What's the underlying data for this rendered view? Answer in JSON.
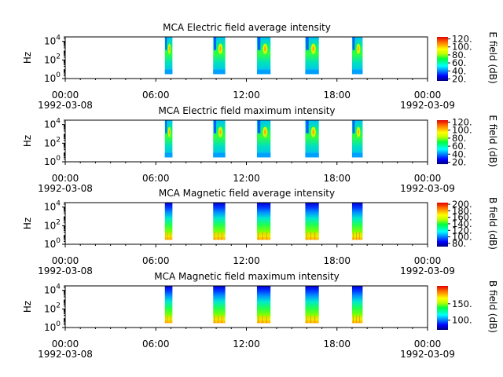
{
  "chart_data": [
    {
      "type": "heatmap",
      "title": "MCA  Electric field average intensity",
      "ylabel": "Hz",
      "yscale": "log",
      "ylim": [
        1,
        30000
      ],
      "y_ticks": [
        {
          "exp": "0",
          "value": 1
        },
        {
          "exp": "2",
          "value": 100
        },
        {
          "exp": "4",
          "value": 10000
        }
      ],
      "xlim": [
        "1992-03-08 00:00",
        "1992-03-09 00:00"
      ],
      "x_ticks": [
        {
          "time": "00:00",
          "date": "1992-03-08"
        },
        {
          "time": "06:00",
          "date": ""
        },
        {
          "time": "12:00",
          "date": ""
        },
        {
          "time": "18:00",
          "date": ""
        },
        {
          "time": "00:00",
          "date": "1992-03-09"
        }
      ],
      "colorbar": {
        "label": "E field (dB)",
        "range": [
          15,
          125
        ],
        "ticks": [
          "20.",
          "40.",
          "60.",
          "80.",
          "100.",
          "120."
        ],
        "tick_values": [
          20,
          40,
          60,
          80,
          100,
          120
        ]
      },
      "field": "E",
      "data_hours": [
        [
          6.6,
          7.1
        ],
        [
          9.8,
          10.6
        ],
        [
          12.7,
          13.6
        ],
        [
          15.9,
          16.8
        ],
        [
          19.0,
          19.7
        ]
      ],
      "freq_range": [
        3,
        30000
      ]
    },
    {
      "type": "heatmap",
      "title": "MCA  Electric field maximum intensity",
      "ylabel": "Hz",
      "yscale": "log",
      "ylim": [
        1,
        30000
      ],
      "y_ticks": [
        {
          "exp": "0",
          "value": 1
        },
        {
          "exp": "2",
          "value": 100
        },
        {
          "exp": "4",
          "value": 10000
        }
      ],
      "xlim": [
        "1992-03-08 00:00",
        "1992-03-09 00:00"
      ],
      "x_ticks": [
        {
          "time": "00:00",
          "date": "1992-03-08"
        },
        {
          "time": "06:00",
          "date": ""
        },
        {
          "time": "12:00",
          "date": ""
        },
        {
          "time": "18:00",
          "date": ""
        },
        {
          "time": "00:00",
          "date": "1992-03-09"
        }
      ],
      "colorbar": {
        "label": "E field (dB)",
        "range": [
          15,
          125
        ],
        "ticks": [
          "20.",
          "40.",
          "60.",
          "80.",
          "100.",
          "120."
        ],
        "tick_values": [
          20,
          40,
          60,
          80,
          100,
          120
        ]
      },
      "field": "E",
      "data_hours": [
        [
          6.6,
          7.1
        ],
        [
          9.8,
          10.6
        ],
        [
          12.7,
          13.6
        ],
        [
          15.9,
          16.8
        ],
        [
          19.0,
          19.7
        ]
      ],
      "freq_range": [
        3,
        30000
      ]
    },
    {
      "type": "heatmap",
      "title": "MCA  Magnetic field average intensity",
      "ylabel": "Hz",
      "yscale": "log",
      "ylim": [
        1,
        30000
      ],
      "y_ticks": [
        {
          "exp": "0",
          "value": 1
        },
        {
          "exp": "2",
          "value": 100
        },
        {
          "exp": "4",
          "value": 10000
        }
      ],
      "xlim": [
        "1992-03-08 00:00",
        "1992-03-09 00:00"
      ],
      "x_ticks": [
        {
          "time": "00:00",
          "date": "1992-03-08"
        },
        {
          "time": "06:00",
          "date": ""
        },
        {
          "time": "12:00",
          "date": ""
        },
        {
          "time": "18:00",
          "date": ""
        },
        {
          "time": "00:00",
          "date": "1992-03-09"
        }
      ],
      "colorbar": {
        "label": "B field (dB)",
        "range": [
          70,
          205
        ],
        "ticks": [
          "80.",
          "100.",
          "120.",
          "140.",
          "160.",
          "180.",
          "200."
        ],
        "tick_values": [
          80,
          100,
          120,
          140,
          160,
          180,
          200
        ]
      },
      "field": "B",
      "data_hours": [
        [
          6.6,
          7.1
        ],
        [
          9.8,
          10.6
        ],
        [
          12.7,
          13.6
        ],
        [
          15.9,
          16.8
        ],
        [
          19.0,
          19.7
        ]
      ],
      "freq_range": [
        3,
        30000
      ]
    },
    {
      "type": "heatmap",
      "title": "MCA  Magnetic field maximum intensity",
      "ylabel": "Hz",
      "yscale": "log",
      "ylim": [
        1,
        30000
      ],
      "y_ticks": [
        {
          "exp": "0",
          "value": 1
        },
        {
          "exp": "2",
          "value": 100
        },
        {
          "exp": "4",
          "value": 10000
        }
      ],
      "xlim": [
        "1992-03-08 00:00",
        "1992-03-09 00:00"
      ],
      "x_ticks": [
        {
          "time": "00:00",
          "date": "1992-03-08"
        },
        {
          "time": "06:00",
          "date": ""
        },
        {
          "time": "12:00",
          "date": ""
        },
        {
          "time": "18:00",
          "date": ""
        },
        {
          "time": "00:00",
          "date": "1992-03-09"
        }
      ],
      "colorbar": {
        "label": "B field (dB)",
        "range": [
          70,
          205
        ],
        "ticks": [
          "100.",
          "150."
        ],
        "tick_values": [
          100,
          150
        ]
      },
      "field": "B",
      "data_hours": [
        [
          6.6,
          7.1
        ],
        [
          9.8,
          10.6
        ],
        [
          12.7,
          13.6
        ],
        [
          15.9,
          16.8
        ],
        [
          19.0,
          19.7
        ]
      ],
      "freq_range": [
        3,
        30000
      ]
    }
  ]
}
